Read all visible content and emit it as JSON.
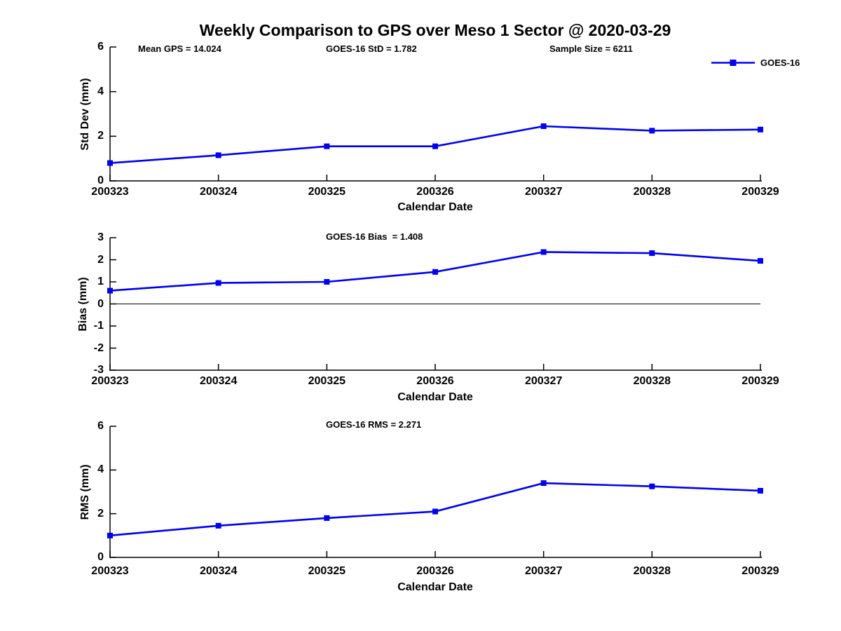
{
  "title": "Weekly Comparison to GPS over Meso 1 Sector @ 2020-03-29",
  "legend": {
    "label": "GOES-16",
    "color": "#0000EE",
    "position": "top-right"
  },
  "colors": {
    "line": "#0000EE",
    "axis": "#000000",
    "text": "#000000",
    "background": "#ffffff"
  },
  "chart_data": [
    {
      "id": "stddev",
      "type": "line",
      "ylabel": "Std Dev (mm)",
      "xlabel": "Calendar Date",
      "ylim": [
        0,
        6
      ],
      "yticks": [
        0,
        2,
        4,
        6
      ],
      "grid": false,
      "zero_line": false,
      "categories": [
        "200323",
        "200324",
        "200325",
        "200326",
        "200327",
        "200328",
        "200329"
      ],
      "series": [
        {
          "name": "GOES-16",
          "values": [
            0.8,
            1.15,
            1.55,
            1.55,
            2.45,
            2.25,
            2.3
          ]
        }
      ],
      "annotations": [
        {
          "text": "Mean GPS = 14.024",
          "x": 197
        },
        {
          "text": "GOES-16 StD = 1.782",
          "x": 465
        },
        {
          "text": "Sample Size = 6211",
          "x": 784
        }
      ]
    },
    {
      "id": "bias",
      "type": "line",
      "ylabel": "Bias (mm)",
      "xlabel": "Calendar Date",
      "ylim": [
        -3,
        3
      ],
      "yticks": [
        3,
        2,
        1,
        0,
        -1,
        -2,
        -3
      ],
      "grid": false,
      "zero_line": true,
      "categories": [
        "200323",
        "200324",
        "200325",
        "200326",
        "200327",
        "200328",
        "200329"
      ],
      "series": [
        {
          "name": "GOES-16",
          "values": [
            0.6,
            0.95,
            1.0,
            1.45,
            2.35,
            2.3,
            1.95
          ]
        }
      ],
      "annotations": [
        {
          "text": "GOES-16 Bias  = 1.408",
          "x": 465
        }
      ]
    },
    {
      "id": "rms",
      "type": "line",
      "ylabel": "RMS (mm)",
      "xlabel": "Calendar Date",
      "ylim": [
        0,
        6
      ],
      "yticks": [
        0,
        2,
        4,
        6
      ],
      "grid": false,
      "zero_line": false,
      "categories": [
        "200323",
        "200324",
        "200325",
        "200326",
        "200327",
        "200328",
        "200329"
      ],
      "series": [
        {
          "name": "GOES-16",
          "values": [
            1.0,
            1.45,
            1.8,
            2.1,
            3.4,
            3.25,
            3.05
          ]
        }
      ],
      "annotations": [
        {
          "text": "GOES-16 RMS = 2.271",
          "x": 465
        }
      ]
    }
  ]
}
